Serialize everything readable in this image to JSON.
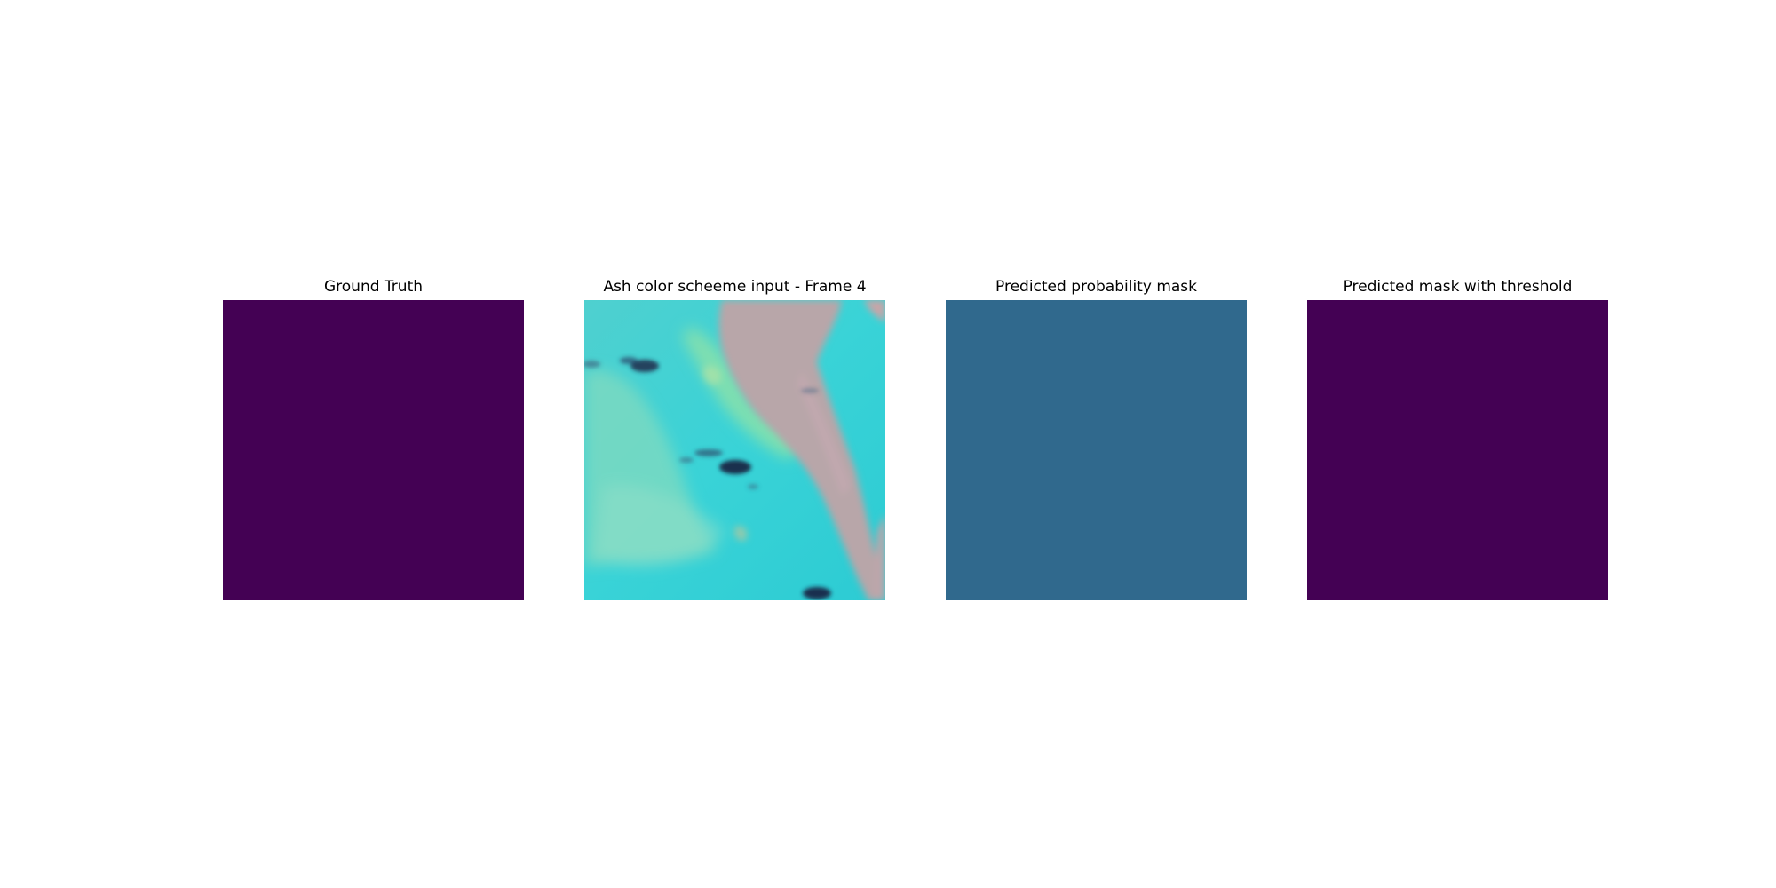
{
  "panels": [
    {
      "title": "Ground Truth",
      "kind": "mask",
      "fill": "#440154"
    },
    {
      "title": "Ash color scheeme input - Frame 4",
      "kind": "satellite-image",
      "palette": {
        "ocean": "#33d0d6",
        "land": "#b7a7a8",
        "coast": "#8fe3b5",
        "cloud": "#1c2a4a"
      }
    },
    {
      "title": "Predicted probability mask",
      "kind": "mask",
      "fill": "#30698d"
    },
    {
      "title": "Predicted mask with threshold",
      "kind": "mask",
      "fill": "#440154"
    }
  ]
}
